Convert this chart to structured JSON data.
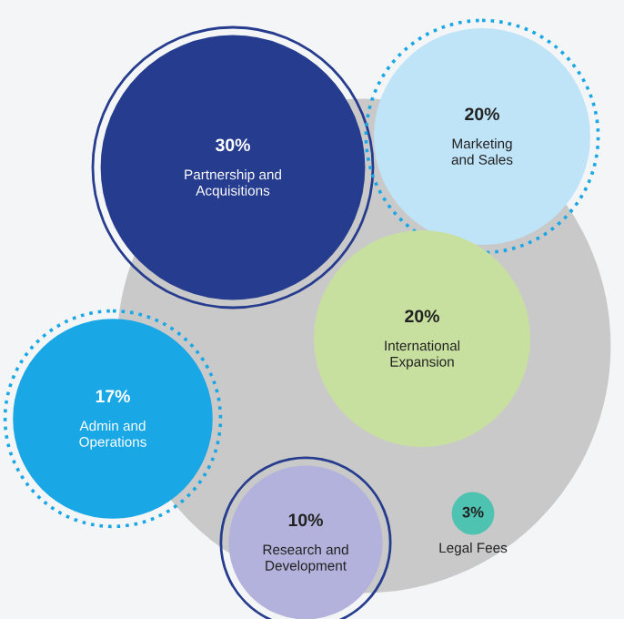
{
  "chart_data": {
    "type": "other",
    "categories": [
      "Partnership and\nAcquisitions",
      "Marketing\nand Sales",
      "International\nExpansion",
      "Admin and\nOperations",
      "Research and\nDevelopment",
      "Legal Fees"
    ],
    "values": [
      30,
      20,
      20,
      17,
      10,
      3
    ],
    "value_labels": [
      "30%",
      "20%",
      "20%",
      "17%",
      "10%",
      "3%"
    ],
    "colors": [
      "#263c8e",
      "#bfe4f8",
      "#c8e09f",
      "#1aa7e6",
      "#b3b2dc",
      "#4ec3b1"
    ]
  }
}
